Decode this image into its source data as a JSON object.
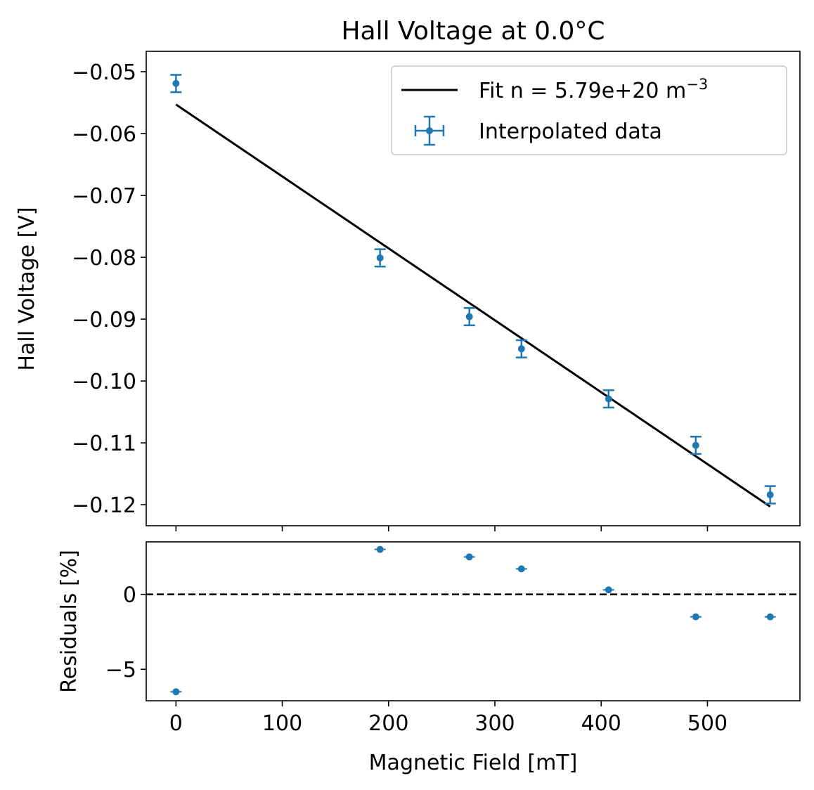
{
  "chart_data": [
    {
      "type": "scatter",
      "title": "Hall Voltage at 0.0°C",
      "xlabel": "",
      "ylabel": "Hall Voltage [V]",
      "xlim": [
        -28,
        587
      ],
      "ylim": [
        -0.1234,
        -0.0467
      ],
      "yticks": [
        -0.05,
        -0.06,
        -0.07,
        -0.08,
        -0.09,
        -0.1,
        -0.11,
        -0.12
      ],
      "ytick_labels": [
        "−0.05",
        "−0.06",
        "−0.07",
        "−0.08",
        "−0.09",
        "−0.10",
        "−0.11",
        "−0.12"
      ],
      "xticks": [
        0,
        100,
        200,
        300,
        400,
        500
      ],
      "legend": {
        "position": "top-right",
        "fit_label": "Fit n = 5.79e+20 m",
        "fit_label_sup": "−3",
        "data_label": "Interpolated data"
      },
      "series": [
        {
          "name": "Interpolated data",
          "color": "#1f77b4",
          "x": [
            0,
            192,
            276,
            325,
            407,
            489,
            559
          ],
          "y": [
            -0.0519,
            -0.0801,
            -0.0896,
            -0.0948,
            -0.1029,
            -0.1104,
            -0.1184
          ],
          "yerr": [
            0.0014,
            0.0014,
            0.0014,
            0.0014,
            0.0014,
            0.0014,
            0.0014
          ]
        },
        {
          "name": "Fit n = 5.79e+20 m⁻³",
          "type": "line",
          "color": "#000000",
          "x": [
            0,
            559
          ],
          "y": [
            -0.0553,
            -0.1203
          ]
        }
      ]
    },
    {
      "type": "scatter",
      "title": "",
      "xlabel": "Magnetic Field [mT]",
      "ylabel": "Residuals [%]",
      "xlim": [
        -28,
        587
      ],
      "ylim": [
        -7.1,
        3.5
      ],
      "yticks": [
        0,
        -5
      ],
      "ytick_labels": [
        "0",
        "−5"
      ],
      "xticks": [
        0,
        100,
        200,
        300,
        400,
        500
      ],
      "xtick_labels": [
        "0",
        "100",
        "200",
        "300",
        "400",
        "500"
      ],
      "reference_line": {
        "y": 0,
        "style": "dashed",
        "color": "#000000"
      },
      "series": [
        {
          "name": "Residuals",
          "color": "#1f77b4",
          "x": [
            0,
            192,
            276,
            325,
            407,
            489,
            559
          ],
          "y": [
            -6.5,
            3.0,
            2.5,
            1.7,
            0.3,
            -1.5,
            -1.5
          ]
        }
      ]
    }
  ]
}
